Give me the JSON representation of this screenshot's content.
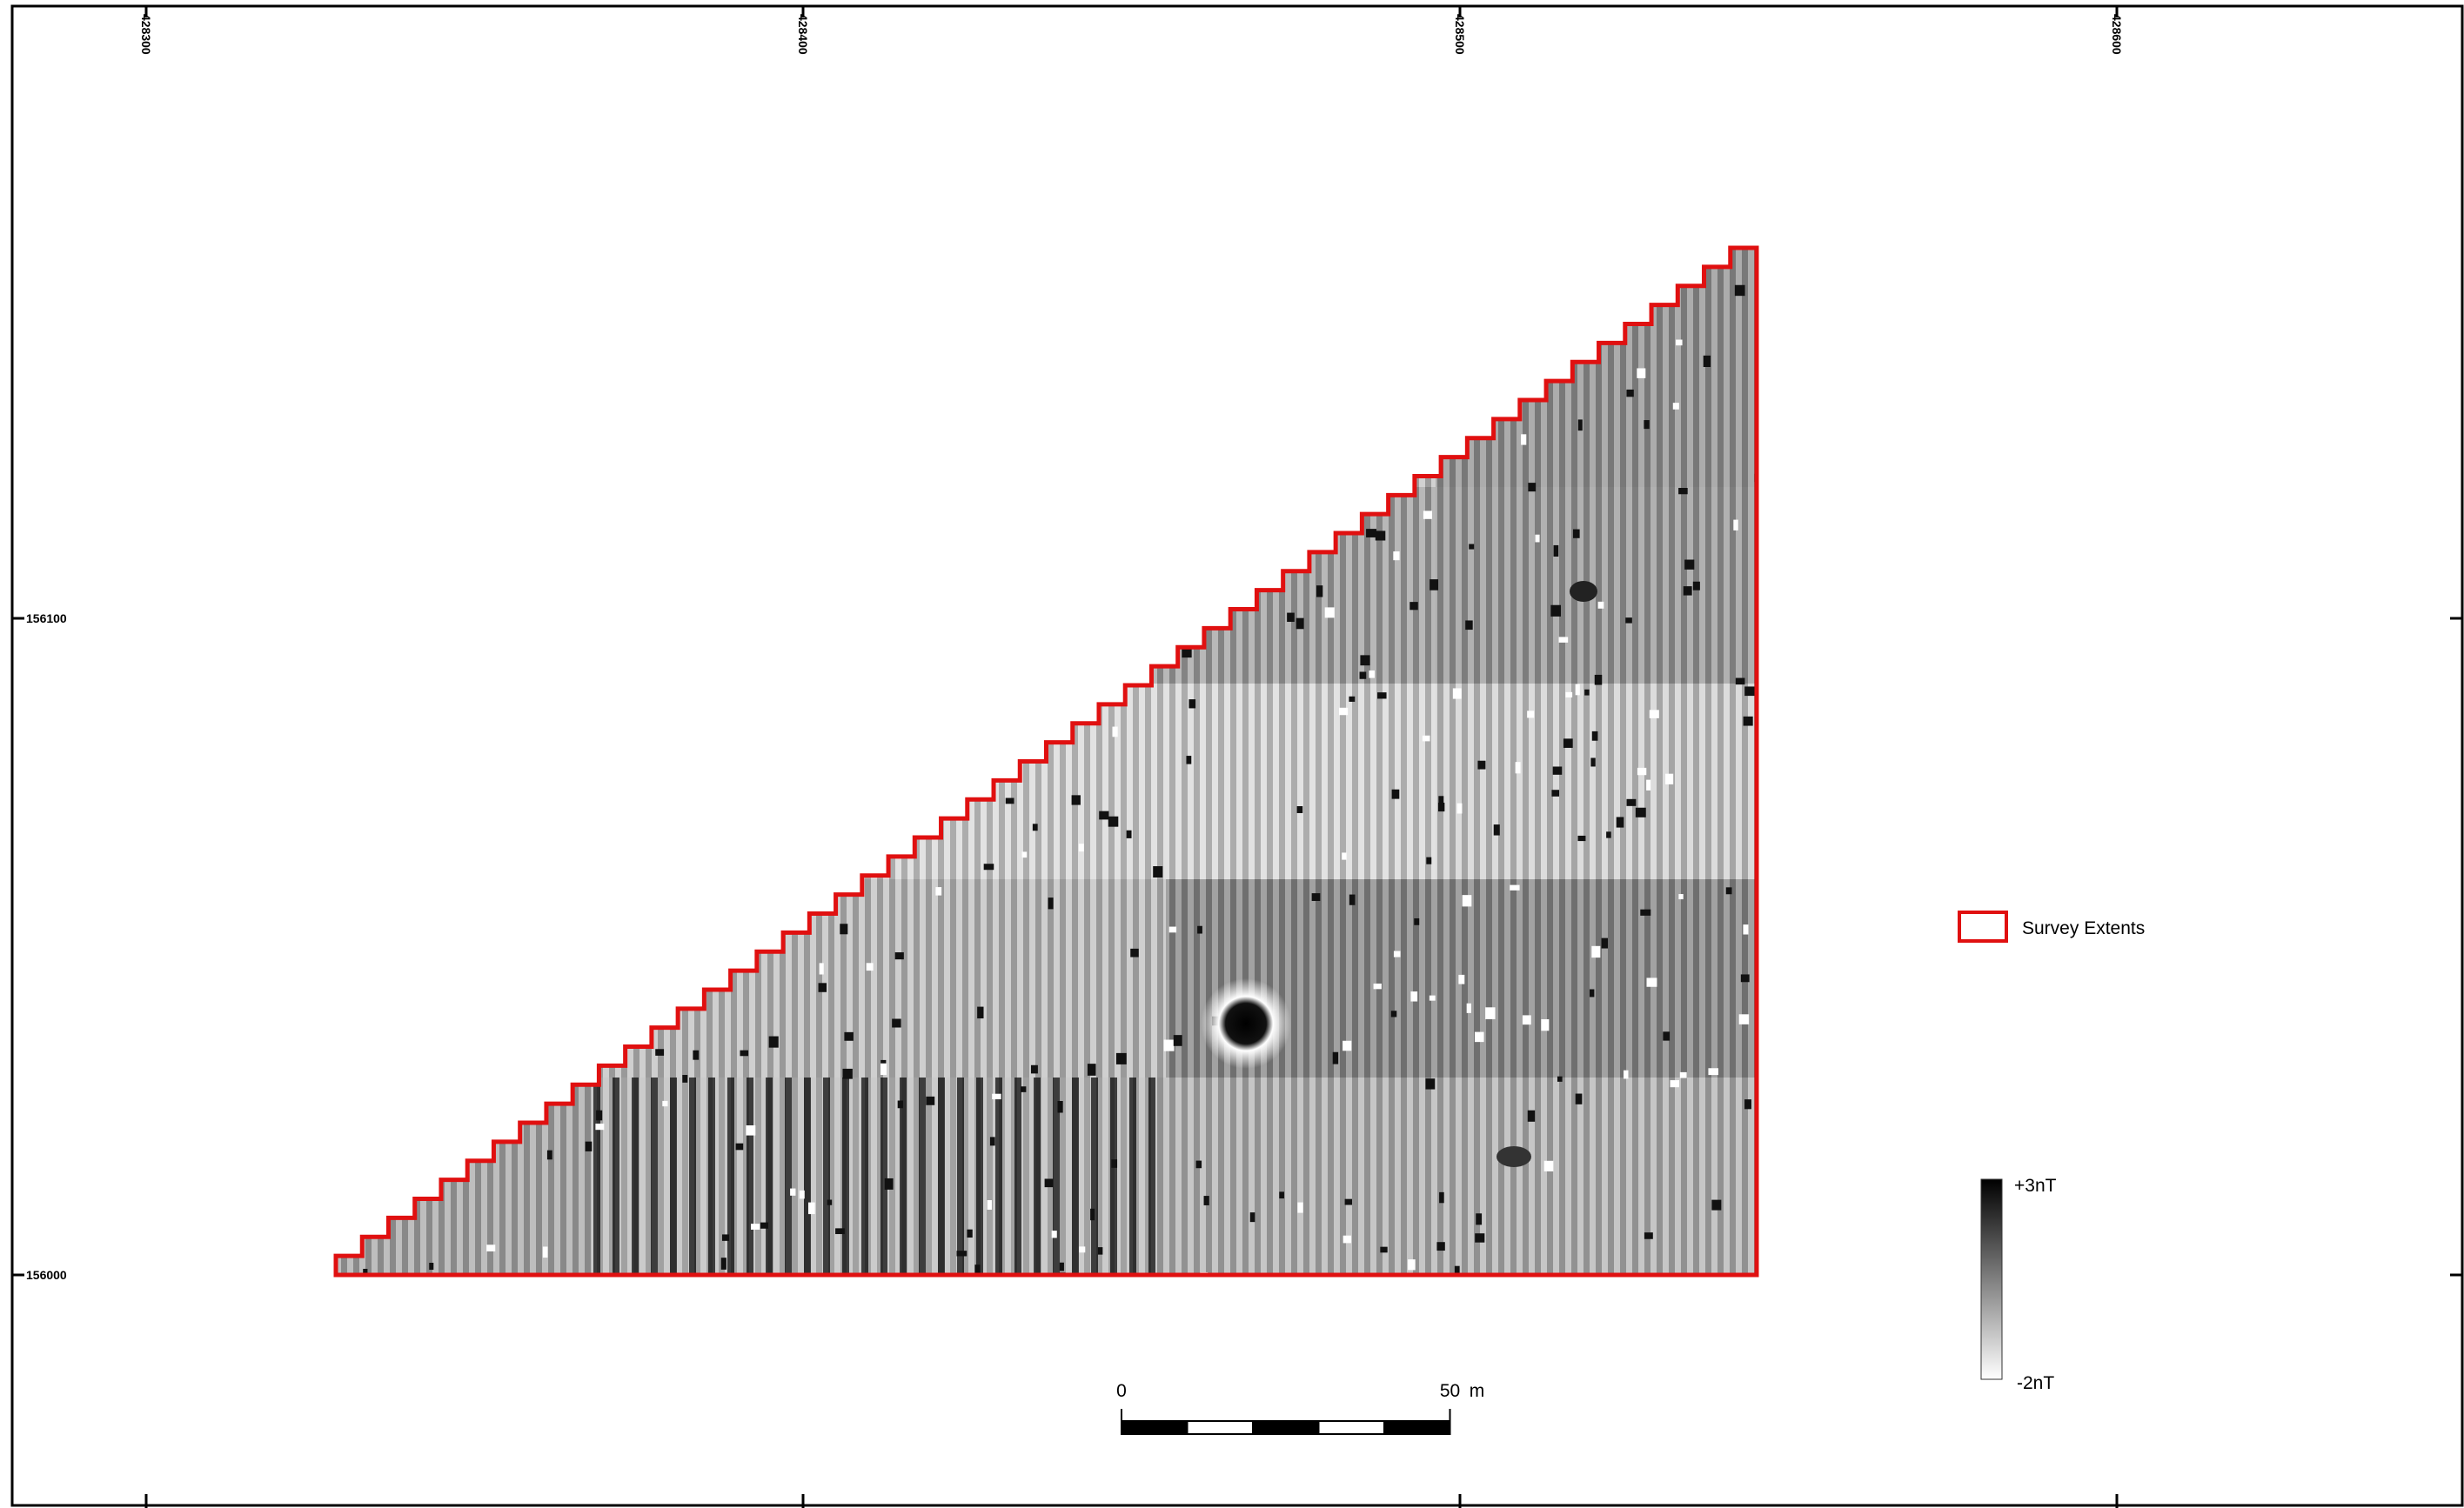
{
  "map": {
    "easting_ticks": [
      428300,
      428400,
      428500,
      428600
    ],
    "northing_ticks": [
      156100,
      156000
    ],
    "legend": {
      "label": "Survey Extents"
    },
    "colorbar": {
      "max_label": "+3nT",
      "min_label": "-2nT"
    },
    "scale_bar": {
      "start": 0,
      "end": 50,
      "unit": "m"
    }
  }
}
